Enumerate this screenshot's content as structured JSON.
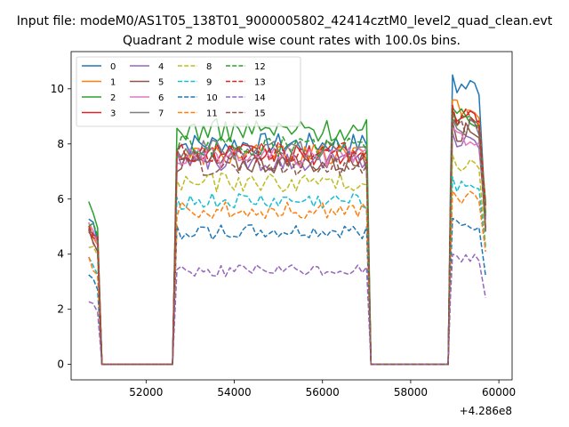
{
  "figure": {
    "suptitle": "Input file: modeM0/AS1T05_138T01_9000005802_42414cztM0_level2_quad_clean.evt",
    "title": "Quadrant 2 module wise count rates with 100.0s bins.",
    "offset_label": "+4.286e8"
  },
  "chart_data": {
    "type": "line",
    "title": "Quadrant 2 module wise count rates with 100.0s bins.",
    "xlabel": "",
    "ylabel": "",
    "x_offset": 428600000,
    "xlim": [
      50300,
      60300
    ],
    "ylim": [
      -0.56,
      11.35
    ],
    "xticks": [
      52000,
      54000,
      56000,
      58000,
      60000
    ],
    "yticks": [
      0,
      2,
      4,
      6,
      8,
      10
    ],
    "grid": false,
    "legend": {
      "placement": "upper-left",
      "columns": 4
    },
    "x_segments": [
      {
        "start": 50700,
        "end": 51000
      },
      {
        "start": 52600,
        "end": 57100
      },
      {
        "start": 58850,
        "end": 59700
      }
    ],
    "series": [
      {
        "name": "0",
        "color": "#1f77b4",
        "dash": "solid",
        "level": 8.0,
        "peak": 10.5
      },
      {
        "name": "1",
        "color": "#ff7f0e",
        "dash": "solid",
        "level": 7.6,
        "peak": 9.6
      },
      {
        "name": "2",
        "color": "#2ca02c",
        "dash": "solid",
        "level": 8.5,
        "peak": 9.3
      },
      {
        "name": "3",
        "color": "#d62728",
        "dash": "solid",
        "level": 7.6,
        "peak": 9.2
      },
      {
        "name": "4",
        "color": "#9467bd",
        "dash": "solid",
        "level": 7.4,
        "peak": 8.4
      },
      {
        "name": "5",
        "color": "#8c564b",
        "dash": "solid",
        "level": 7.3,
        "peak": 8.8
      },
      {
        "name": "6",
        "color": "#e377c2",
        "dash": "solid",
        "level": 7.5,
        "peak": 8.6
      },
      {
        "name": "7",
        "color": "#7f7f7f",
        "dash": "solid",
        "level": 7.8,
        "peak": 8.9
      },
      {
        "name": "8",
        "color": "#bcbd22",
        "dash": "dashed",
        "level": 6.6,
        "peak": 7.6
      },
      {
        "name": "9",
        "color": "#17becf",
        "dash": "dashed",
        "level": 5.9,
        "peak": 6.8
      },
      {
        "name": "10",
        "color": "#1f77b4",
        "dash": "dashed",
        "level": 4.8,
        "peak": 5.3
      },
      {
        "name": "11",
        "color": "#ff7f0e",
        "dash": "dashed",
        "level": 5.6,
        "peak": 6.3
      },
      {
        "name": "12",
        "color": "#2ca02c",
        "dash": "dashed",
        "level": 7.9,
        "peak": 9.2
      },
      {
        "name": "13",
        "color": "#d62728",
        "dash": "dashed",
        "level": 7.7,
        "peak": 9.4
      },
      {
        "name": "14",
        "color": "#9467bd",
        "dash": "dashed",
        "level": 3.4,
        "peak": 4.0
      },
      {
        "name": "15",
        "color": "#8c564b",
        "dash": "dashed",
        "level": 7.2,
        "peak": 9.0
      }
    ]
  }
}
